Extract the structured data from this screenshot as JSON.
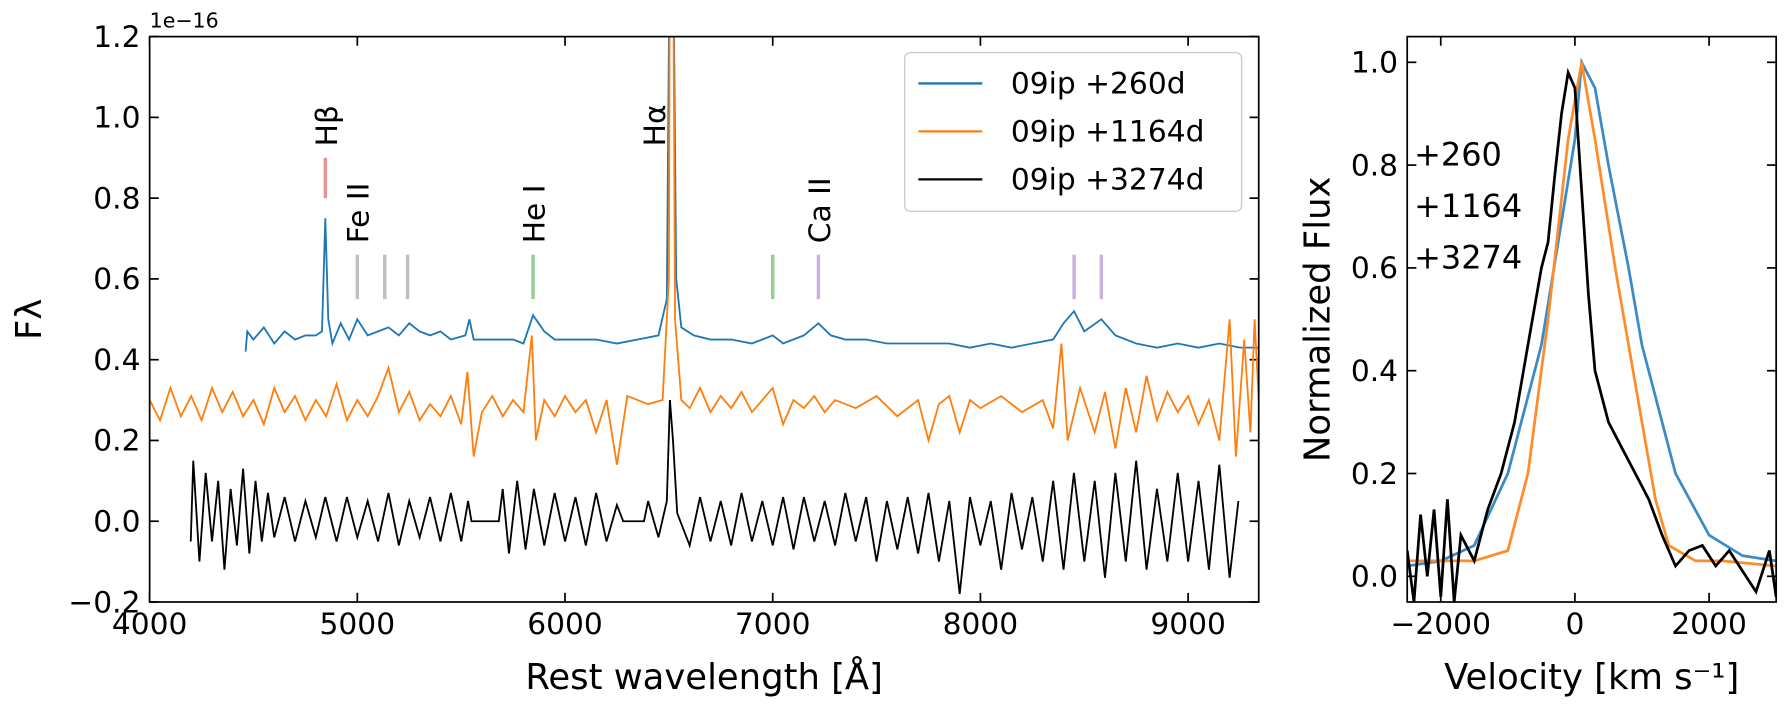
{
  "chart_data": [
    {
      "type": "line",
      "xlabel": "Rest wavelength  [Å]",
      "ylabel": "Fλ",
      "offset_text": "1e−16",
      "xlim": [
        4000,
        9340
      ],
      "ylim": [
        -0.2,
        1.2
      ],
      "xticks": [
        4000,
        5000,
        6000,
        7000,
        8000,
        9000
      ],
      "yticks": [
        {
          "value": -0.2,
          "label": "−0.2"
        },
        {
          "value": 0,
          "label": "0.0"
        },
        0.2,
        0.4,
        0.6,
        0.8,
        {
          "value": 1,
          "label": "1.0"
        },
        1.2
      ],
      "grid": false,
      "legend": "upper right",
      "legend_style": "box",
      "series": [
        {
          "name": "09ip +260d",
          "color": "#1f77b4",
          "x": [
            4462,
            4470,
            4500,
            4550,
            4600,
            4650,
            4700,
            4750,
            4800,
            4830,
            4846,
            4860,
            4880,
            4920,
            4960,
            5000,
            5050,
            5100,
            5150,
            5200,
            5250,
            5300,
            5350,
            5400,
            5450,
            5520,
            5540,
            5560,
            5650,
            5750,
            5800,
            5846,
            5900,
            5950,
            6050,
            6150,
            6250,
            6350,
            6450,
            6490,
            6505,
            6520,
            6535,
            6560,
            6620,
            6700,
            6800,
            6900,
            7000,
            7050,
            7150,
            7220,
            7280,
            7350,
            7450,
            7550,
            7650,
            7750,
            7850,
            7950,
            8050,
            8150,
            8250,
            8350,
            8400,
            8451,
            8500,
            8582,
            8650,
            8750,
            8850,
            8950,
            9050,
            9150,
            9250,
            9340
          ],
          "values": [
            0.42,
            0.47,
            0.45,
            0.48,
            0.44,
            0.47,
            0.45,
            0.46,
            0.46,
            0.47,
            0.75,
            0.5,
            0.44,
            0.49,
            0.45,
            0.5,
            0.46,
            0.47,
            0.48,
            0.46,
            0.49,
            0.47,
            0.46,
            0.47,
            0.45,
            0.46,
            0.5,
            0.45,
            0.45,
            0.45,
            0.44,
            0.51,
            0.47,
            0.45,
            0.45,
            0.45,
            0.44,
            0.45,
            0.46,
            0.55,
            1.5,
            1.5,
            0.6,
            0.48,
            0.46,
            0.45,
            0.45,
            0.44,
            0.46,
            0.44,
            0.46,
            0.49,
            0.46,
            0.45,
            0.45,
            0.44,
            0.44,
            0.44,
            0.44,
            0.43,
            0.44,
            0.43,
            0.44,
            0.45,
            0.49,
            0.52,
            0.47,
            0.5,
            0.46,
            0.44,
            0.43,
            0.44,
            0.43,
            0.44,
            0.43,
            0.43
          ]
        },
        {
          "name": "09ip +1164d",
          "color": "#ff7f0e",
          "x": [
            4000,
            4050,
            4100,
            4150,
            4200,
            4250,
            4300,
            4350,
            4400,
            4450,
            4500,
            4550,
            4600,
            4650,
            4700,
            4750,
            4800,
            4850,
            4900,
            4950,
            5000,
            5050,
            5100,
            5150,
            5200,
            5250,
            5300,
            5350,
            5400,
            5450,
            5500,
            5530,
            5560,
            5600,
            5650,
            5700,
            5750,
            5800,
            5840,
            5860,
            5900,
            5950,
            6000,
            6050,
            6100,
            6150,
            6200,
            6250,
            6300,
            6400,
            6470,
            6500,
            6505,
            6520,
            6530,
            6560,
            6600,
            6650,
            6700,
            6750,
            6800,
            6850,
            6900,
            6950,
            7000,
            7050,
            7100,
            7150,
            7200,
            7250,
            7300,
            7400,
            7500,
            7600,
            7700,
            7750,
            7800,
            7850,
            7900,
            7950,
            8000,
            8100,
            8200,
            8300,
            8350,
            8390,
            8420,
            8480,
            8550,
            8600,
            8650,
            8700,
            8750,
            8800,
            8850,
            8900,
            8950,
            9000,
            9050,
            9100,
            9150,
            9200,
            9230,
            9270,
            9300,
            9320,
            9340
          ],
          "values": [
            0.3,
            0.25,
            0.33,
            0.26,
            0.31,
            0.25,
            0.33,
            0.27,
            0.32,
            0.26,
            0.3,
            0.24,
            0.33,
            0.27,
            0.31,
            0.25,
            0.3,
            0.26,
            0.34,
            0.25,
            0.3,
            0.26,
            0.31,
            0.38,
            0.27,
            0.32,
            0.25,
            0.29,
            0.26,
            0.31,
            0.24,
            0.37,
            0.16,
            0.27,
            0.31,
            0.26,
            0.3,
            0.27,
            0.46,
            0.2,
            0.3,
            0.26,
            0.31,
            0.27,
            0.3,
            0.22,
            0.3,
            0.14,
            0.31,
            0.29,
            0.3,
            0.6,
            1.5,
            1.5,
            0.5,
            0.3,
            0.28,
            0.33,
            0.27,
            0.31,
            0.28,
            0.32,
            0.27,
            0.3,
            0.33,
            0.24,
            0.3,
            0.28,
            0.31,
            0.27,
            0.3,
            0.28,
            0.31,
            0.26,
            0.3,
            0.2,
            0.29,
            0.31,
            0.22,
            0.3,
            0.28,
            0.31,
            0.27,
            0.3,
            0.23,
            0.44,
            0.2,
            0.33,
            0.22,
            0.32,
            0.18,
            0.33,
            0.22,
            0.36,
            0.25,
            0.32,
            0.27,
            0.31,
            0.24,
            0.3,
            0.2,
            0.5,
            0.16,
            0.45,
            0.22,
            0.5,
            0.3
          ]
        },
        {
          "name": "09ip +3274d",
          "color": "#000000",
          "x": [
            4198,
            4210,
            4240,
            4270,
            4300,
            4330,
            4360,
            4390,
            4420,
            4450,
            4480,
            4510,
            4540,
            4570,
            4600,
            4650,
            4700,
            4750,
            4800,
            4846,
            4900,
            4950,
            5000,
            5050,
            5100,
            5150,
            5200,
            5250,
            5300,
            5350,
            5400,
            5450,
            5500,
            5533,
            5550,
            5681,
            5700,
            5730,
            5770,
            5810,
            5850,
            5900,
            5950,
            6000,
            6050,
            6100,
            6150,
            6200,
            6250,
            6280,
            6380,
            6400,
            6450,
            6490,
            6505,
            6520,
            6540,
            6600,
            6650,
            6700,
            6750,
            6800,
            6850,
            6900,
            6950,
            7000,
            7050,
            7100,
            7150,
            7200,
            7250,
            7300,
            7350,
            7400,
            7450,
            7500,
            7550,
            7600,
            7650,
            7700,
            7750,
            7800,
            7850,
            7900,
            7950,
            8000,
            8050,
            8100,
            8150,
            8200,
            8250,
            8300,
            8350,
            8400,
            8450,
            8500,
            8550,
            8600,
            8650,
            8700,
            8750,
            8800,
            8850,
            8900,
            8950,
            9000,
            9050,
            9100,
            9150,
            9200,
            9242
          ],
          "values": [
            -0.05,
            0.15,
            -0.1,
            0.12,
            -0.05,
            0.1,
            -0.12,
            0.08,
            -0.06,
            0.13,
            -0.08,
            0.1,
            -0.05,
            0.07,
            -0.04,
            0.06,
            -0.05,
            0.05,
            -0.04,
            0.06,
            -0.05,
            0.06,
            -0.04,
            0.05,
            -0.05,
            0.07,
            -0.06,
            0.05,
            -0.04,
            0.06,
            -0.05,
            0.07,
            -0.05,
            0.05,
            0,
            0,
            0.08,
            -0.08,
            0.1,
            -0.07,
            0.08,
            -0.06,
            0.07,
            -0.05,
            0.06,
            -0.06,
            0.07,
            -0.05,
            0.04,
            0,
            0,
            0.05,
            -0.04,
            0.05,
            0.3,
            0.2,
            0.02,
            -0.06,
            0.06,
            -0.05,
            0.05,
            -0.06,
            0.07,
            -0.05,
            0.05,
            -0.06,
            0.06,
            -0.07,
            0.06,
            -0.05,
            0.05,
            -0.06,
            0.07,
            -0.05,
            0.06,
            -0.1,
            0.05,
            -0.07,
            0.06,
            -0.08,
            0.07,
            -0.1,
            0.05,
            -0.18,
            0.06,
            -0.06,
            0.05,
            -0.12,
            0.07,
            -0.07,
            0.06,
            -0.1,
            0.1,
            -0.12,
            0.12,
            -0.1,
            0.1,
            -0.14,
            0.12,
            -0.1,
            0.15,
            -0.12,
            0.08,
            -0.1,
            0.12,
            -0.1,
            0.1,
            -0.12,
            0.14,
            -0.14,
            0.05
          ]
        }
      ],
      "line_markers": [
        {
          "label": "Hβ",
          "color": "#d62728",
          "x": 4846,
          "wavelengths": [
            4846
          ],
          "ymin": 0.8,
          "ymax": 0.9
        },
        {
          "label": "Fe II",
          "color": "#7f7f7f",
          "x": 5000,
          "wavelengths": [
            5000,
            5132,
            5242
          ],
          "ymin": 0.55,
          "ymax": 0.66
        },
        {
          "label": "He I",
          "color": "#2ca02c",
          "x": 5846,
          "wavelengths": [
            5846,
            7000
          ],
          "ymin": 0.55,
          "ymax": 0.66
        },
        {
          "label": "Hα",
          "color": "#d62728",
          "x": 6426,
          "wavelengths": [],
          "ymin": 0.8,
          "ymax": 0.9
        },
        {
          "label": "Ca II",
          "color": "#9467bd",
          "x": 7220,
          "wavelengths": [
            7220,
            8451,
            8582
          ],
          "ymin": 0.55,
          "ymax": 0.66
        }
      ]
    },
    {
      "type": "line",
      "xlabel": "Velocity [km s⁻¹]",
      "ylabel": "Normalized Flux",
      "xlim": [
        -2500,
        3000
      ],
      "ylim": [
        -0.05,
        1.05
      ],
      "xticks": [
        {
          "value": -2000,
          "label": "−2000"
        },
        0,
        2000
      ],
      "yticks": [
        {
          "value": 0,
          "label": "0.0"
        },
        0.2,
        0.4,
        0.6,
        0.8,
        {
          "value": 1,
          "label": "1.0"
        }
      ],
      "grid": false,
      "legend": "left",
      "legend_style": "colored-text",
      "series": [
        {
          "name": "+260",
          "color": "#3b8bc6",
          "x": [
            -2500,
            -2000,
            -1500,
            -1000,
            -500,
            0,
            100,
            300,
            500,
            800,
            1000,
            1500,
            2000,
            2500,
            3000
          ],
          "values": [
            0.02,
            0.03,
            0.06,
            0.2,
            0.45,
            0.85,
            1.0,
            0.95,
            0.8,
            0.6,
            0.45,
            0.2,
            0.08,
            0.04,
            0.03
          ]
        },
        {
          "name": "+1164",
          "color": "#ff8c2a",
          "x": [
            -2500,
            -1500,
            -1000,
            -700,
            -400,
            -100,
            100,
            300,
            600,
            800,
            1000,
            1200,
            1400,
            1800,
            2200,
            3000
          ],
          "values": [
            0.03,
            0.03,
            0.05,
            0.2,
            0.5,
            0.85,
            1.0,
            0.85,
            0.6,
            0.45,
            0.3,
            0.15,
            0.06,
            0.03,
            0.03,
            0.02
          ]
        },
        {
          "name": "+3274",
          "color": "#000000",
          "x": [
            -2500,
            -2400,
            -2300,
            -2200,
            -2100,
            -2000,
            -1900,
            -1800,
            -1700,
            -1500,
            -1300,
            -1100,
            -900,
            -700,
            -500,
            -400,
            -300,
            -200,
            -100,
            0,
            100,
            200,
            300,
            500,
            700,
            900,
            1100,
            1300,
            1500,
            1700,
            1900,
            2100,
            2300,
            2500,
            2700,
            2900,
            3000
          ],
          "values": [
            0.05,
            -0.05,
            0.12,
            0,
            0.13,
            -0.04,
            0.15,
            -0.05,
            0.08,
            0.03,
            0.13,
            0.2,
            0.3,
            0.45,
            0.6,
            0.65,
            0.78,
            0.9,
            0.98,
            0.95,
            0.75,
            0.55,
            0.4,
            0.3,
            0.25,
            0.2,
            0.15,
            0.08,
            0.02,
            0.05,
            0.06,
            0.02,
            0.05,
            0.01,
            -0.03,
            0.05,
            -0.04
          ]
        }
      ]
    }
  ]
}
